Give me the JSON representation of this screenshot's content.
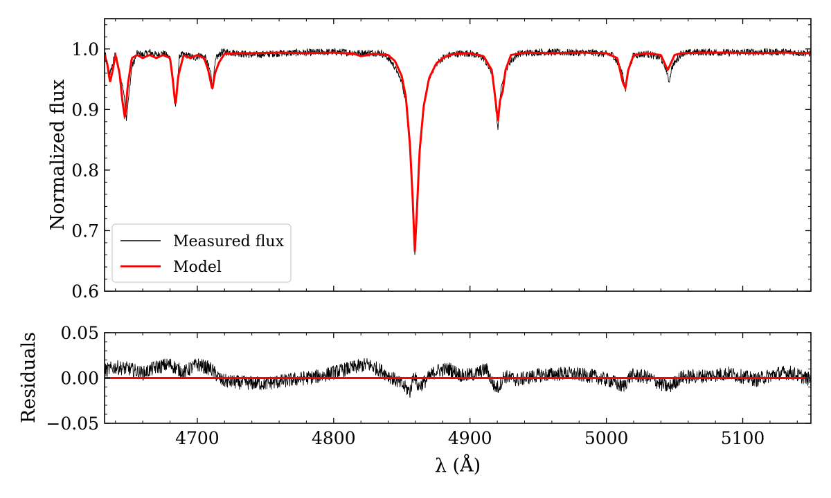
{
  "chart_data": [
    {
      "type": "line",
      "panel": "spectrum",
      "title": "",
      "xlabel": "",
      "ylabel": "Normalized flux",
      "xlim": [
        4632,
        5150
      ],
      "ylim": [
        0.6,
        1.05
      ],
      "x_ticks": [
        4700,
        4800,
        4900,
        5000,
        5100
      ],
      "y_ticks": [
        0.6,
        0.7,
        0.8,
        0.9,
        1.0
      ],
      "y_tick_labels": [
        "0.6",
        "0.7",
        "0.8",
        "0.9",
        "1.0"
      ],
      "grid": false,
      "legend": {
        "placement": "lower-left",
        "entries": [
          "Measured flux",
          "Model"
        ]
      },
      "series": [
        {
          "name": "Measured flux",
          "color": "#000000",
          "x": [
            4632,
            4634,
            4636,
            4638,
            4640,
            4643,
            4646,
            4648,
            4652,
            4656,
            4660,
            4665,
            4670,
            4675,
            4680,
            4683,
            4684,
            4685,
            4687,
            4692,
            4698,
            4702,
            4706,
            4710,
            4711,
            4712,
            4714,
            4718,
            4722,
            4730,
            4740,
            4760,
            4780,
            4800,
            4815,
            4820,
            4830,
            4835,
            4840,
            4845,
            4850,
            4853,
            4856,
            4858,
            4859.5,
            4861,
            4863,
            4866,
            4870,
            4875,
            4880,
            4885,
            4890,
            4900,
            4910,
            4916,
            4919,
            4920.5,
            4922,
            4924,
            4928,
            4935,
            4950,
            4970,
            4990,
            5005,
            5012,
            5014,
            5016,
            5020,
            5030,
            5040,
            5044,
            5046,
            5048,
            5055,
            5070,
            5090,
            5110,
            5130,
            5150
          ],
          "values": [
            0.996,
            0.975,
            0.96,
            0.975,
            0.994,
            0.96,
            0.93,
            0.885,
            0.97,
            0.993,
            0.99,
            0.995,
            0.99,
            0.993,
            0.985,
            0.93,
            0.905,
            0.93,
            0.99,
            0.99,
            0.985,
            0.99,
            0.985,
            0.96,
            0.935,
            0.96,
            0.985,
            0.995,
            0.995,
            0.993,
            0.99,
            0.993,
            0.994,
            0.995,
            0.994,
            0.993,
            0.994,
            0.993,
            0.985,
            0.97,
            0.945,
            0.91,
            0.83,
            0.74,
            0.66,
            0.72,
            0.82,
            0.9,
            0.95,
            0.975,
            0.985,
            0.99,
            0.992,
            0.993,
            0.985,
            0.96,
            0.9,
            0.868,
            0.92,
            0.95,
            0.975,
            0.992,
            0.995,
            0.994,
            0.994,
            0.99,
            0.96,
            0.928,
            0.965,
            0.99,
            0.992,
            0.985,
            0.965,
            0.945,
            0.97,
            0.993,
            0.995,
            0.994,
            0.995,
            0.995,
            0.993
          ]
        },
        {
          "name": "Model",
          "color": "#ff0000",
          "x": [
            4632,
            4634,
            4636,
            4638,
            4640,
            4643,
            4645,
            4647,
            4649,
            4652,
            4656,
            4660,
            4665,
            4670,
            4675,
            4680,
            4682,
            4684,
            4686,
            4690,
            4695,
            4700,
            4705,
            4708,
            4711,
            4713,
            4716,
            4720,
            4730,
            4740,
            4760,
            4780,
            4800,
            4815,
            4820,
            4830,
            4840,
            4845,
            4850,
            4853,
            4856,
            4858,
            4859.5,
            4861,
            4863,
            4866,
            4870,
            4875,
            4880,
            4885,
            4890,
            4900,
            4910,
            4916,
            4919,
            4920.5,
            4922,
            4924,
            4926,
            4930,
            4940,
            4960,
            4980,
            5000,
            5008,
            5012,
            5014,
            5016,
            5020,
            5030,
            5040,
            5043,
            5045,
            5047,
            5050,
            5055,
            5070,
            5090,
            5110,
            5130,
            5150
          ],
          "values": [
            0.99,
            0.975,
            0.945,
            0.965,
            0.99,
            0.96,
            0.915,
            0.885,
            0.94,
            0.985,
            0.99,
            0.985,
            0.99,
            0.985,
            0.99,
            0.985,
            0.95,
            0.905,
            0.955,
            0.99,
            0.985,
            0.99,
            0.985,
            0.965,
            0.933,
            0.96,
            0.978,
            0.992,
            0.993,
            0.993,
            0.994,
            0.993,
            0.994,
            0.992,
            0.988,
            0.992,
            0.99,
            0.98,
            0.955,
            0.92,
            0.84,
            0.75,
            0.665,
            0.73,
            0.83,
            0.905,
            0.952,
            0.975,
            0.985,
            0.99,
            0.992,
            0.993,
            0.988,
            0.965,
            0.91,
            0.88,
            0.915,
            0.93,
            0.965,
            0.99,
            0.994,
            0.993,
            0.994,
            0.993,
            0.985,
            0.945,
            0.935,
            0.965,
            0.99,
            0.993,
            0.99,
            0.975,
            0.965,
            0.975,
            0.99,
            0.993,
            0.994,
            0.994,
            0.993,
            0.994,
            0.993
          ]
        }
      ]
    },
    {
      "type": "line",
      "panel": "residuals",
      "title": "",
      "xlabel": "λ (Å)",
      "ylabel": "Residuals",
      "xlim": [
        4632,
        5150
      ],
      "ylim": [
        -0.05,
        0.05
      ],
      "x_ticks": [
        4700,
        4800,
        4900,
        5000,
        5100
      ],
      "x_tick_labels": [
        "4700",
        "4800",
        "4900",
        "5000",
        "5100"
      ],
      "y_ticks": [
        0.05,
        0.0,
        -0.05
      ],
      "y_tick_labels": [
        "0.05",
        "0.00",
        "−0.05"
      ],
      "grid": false,
      "series": [
        {
          "color": "#000000",
          "x": [
            4632,
            4640,
            4650,
            4660,
            4670,
            4680,
            4690,
            4700,
            4710,
            4718,
            4730,
            4750,
            4770,
            4790,
            4810,
            4825,
            4835,
            4845,
            4852,
            4856,
            4859,
            4862,
            4866,
            4875,
            4885,
            4895,
            4905,
            4912,
            4918,
            4921,
            4925,
            4935,
            4950,
            4970,
            4990,
            5005,
            5012,
            5018,
            5030,
            5042,
            5046,
            5055,
            5070,
            5090,
            5110,
            5125,
            5135,
            5150
          ],
          "values": [
            0.008,
            0.012,
            0.01,
            0.005,
            0.012,
            0.015,
            0.006,
            0.015,
            0.01,
            -0.003,
            -0.005,
            -0.006,
            -0.002,
            0.002,
            0.01,
            0.015,
            0.008,
            -0.002,
            -0.01,
            -0.015,
            0.005,
            -0.01,
            -0.005,
            0.008,
            0.01,
            0.002,
            0.005,
            0.01,
            -0.01,
            -0.01,
            0.002,
            -0.002,
            0.003,
            0.005,
            0.002,
            -0.004,
            -0.01,
            0.003,
            0.001,
            -0.008,
            -0.01,
            0.001,
            0.002,
            0.005,
            -0.002,
            0.005,
            0.006,
            -0.002
          ]
        },
        {
          "name": "Model",
          "color": "#ff0000",
          "x": [
            4632,
            5150
          ],
          "values": [
            0.0,
            0.0
          ]
        }
      ]
    }
  ]
}
